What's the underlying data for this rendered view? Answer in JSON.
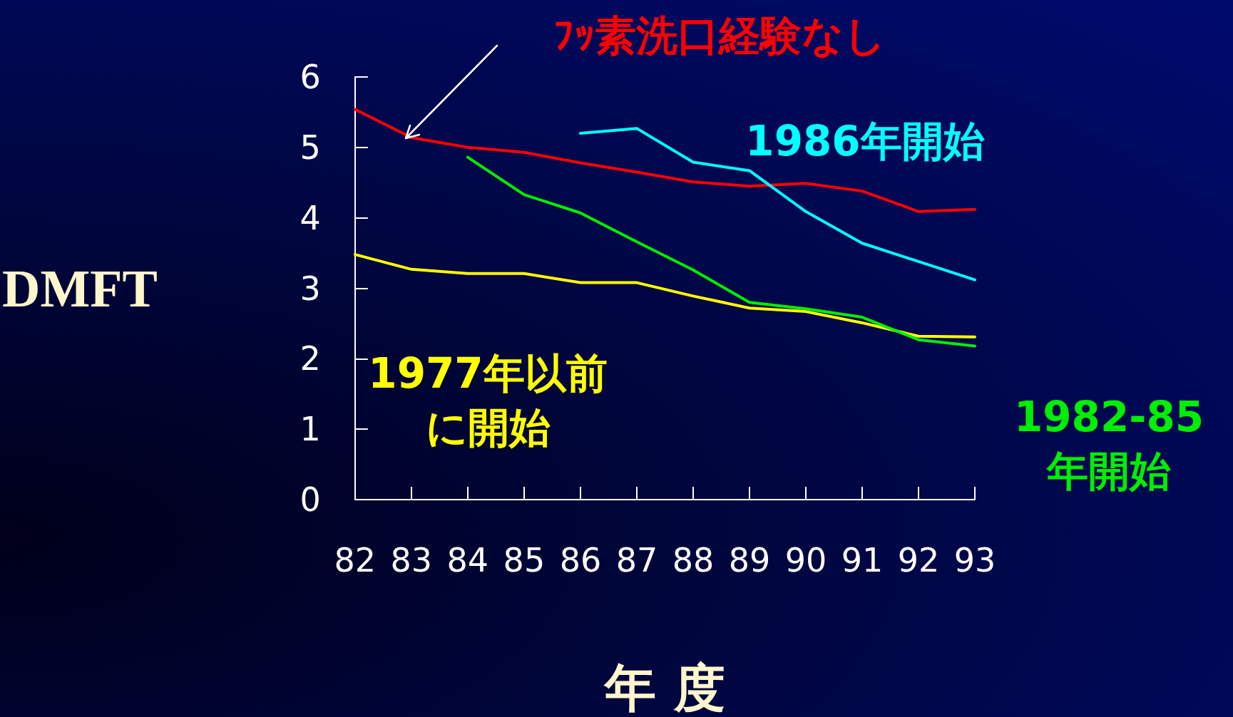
{
  "chart_data": {
    "type": "line",
    "xlabel": "年 度",
    "ylabel": "DMFT",
    "categories": [
      "82",
      "83",
      "84",
      "85",
      "86",
      "87",
      "88",
      "89",
      "90",
      "91",
      "92",
      "93"
    ],
    "series": [
      {
        "name": "ﾌｯ素洗口経験なし",
        "color": "#ff0000",
        "values": [
          5.54,
          5.14,
          5.0,
          4.93,
          4.78,
          4.65,
          4.51,
          4.45,
          4.49,
          4.38,
          4.09,
          4.12
        ]
      },
      {
        "name": "1986年開始",
        "color": "#00ffff",
        "values": [
          null,
          null,
          null,
          null,
          5.2,
          5.27,
          4.79,
          4.67,
          4.09,
          3.64,
          3.38,
          3.12
        ]
      },
      {
        "name": "1977年以前に開始",
        "color": "#ffff00",
        "values": [
          3.48,
          3.27,
          3.21,
          3.21,
          3.08,
          3.08,
          2.89,
          2.72,
          2.67,
          2.51,
          2.32,
          2.31
        ]
      },
      {
        "name": "1982-85年開始",
        "color": "#00ee00",
        "values": [
          null,
          null,
          4.86,
          4.33,
          4.07,
          3.66,
          3.26,
          2.8,
          2.71,
          2.59,
          2.27,
          2.18
        ]
      }
    ],
    "ylim": [
      0,
      6
    ],
    "yticks": [
      0,
      1,
      2,
      3,
      4,
      5,
      6
    ],
    "marker": "none",
    "line_style": "solid"
  }
}
